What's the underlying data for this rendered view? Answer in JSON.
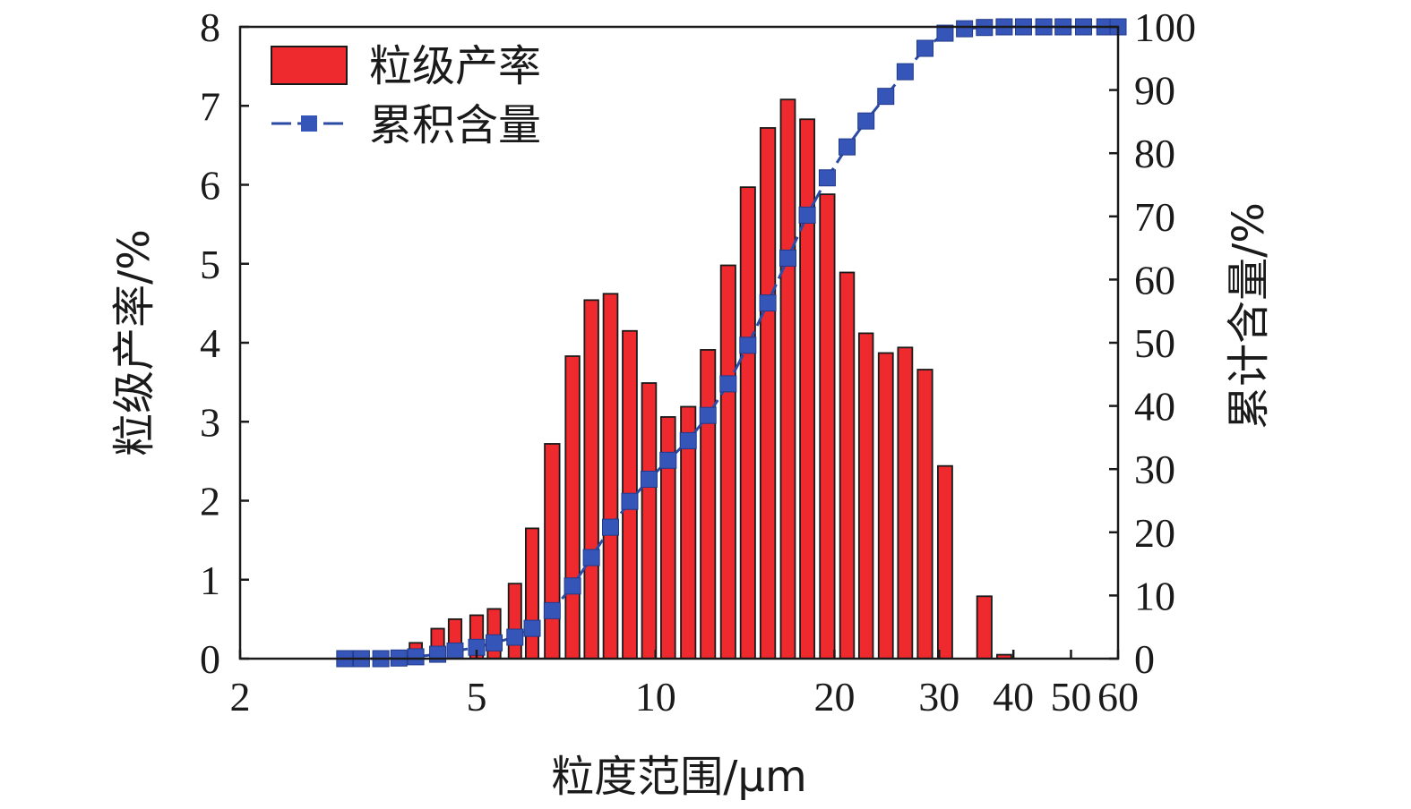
{
  "chart_data": {
    "type": "bar",
    "x_scale": "log",
    "xlabel": "粒度范围/μm",
    "ylabel_left": "粒级产率/%",
    "ylabel_right": "累计含量/%",
    "xlim": [
      2,
      60
    ],
    "ylim_left": [
      0,
      8
    ],
    "ylim_right": [
      0,
      100
    ],
    "x_ticks": [
      2,
      5,
      10,
      20,
      30,
      40,
      50,
      60
    ],
    "y_ticks_left": [
      0,
      1,
      2,
      3,
      4,
      5,
      6,
      7,
      8
    ],
    "y_ticks_right": [
      0,
      10,
      20,
      30,
      40,
      50,
      60,
      70,
      80,
      90,
      100
    ],
    "grid": false,
    "legend_position": "top-left",
    "colors": {
      "bar_fill": "#ee2a2f",
      "bar_edge": "#1a1a1a",
      "line": "#2b4aa6",
      "marker": "#3556b8",
      "axis": "#1a1a1a"
    },
    "series": [
      {
        "name": "粒级产率",
        "type": "bar",
        "axis": "left",
        "x": [
          3.0,
          3.2,
          3.45,
          3.7,
          3.95,
          4.3,
          4.6,
          5.0,
          5.35,
          5.8,
          6.2,
          6.7,
          7.25,
          7.8,
          8.4,
          9.05,
          9.75,
          10.5,
          11.35,
          12.25,
          13.25,
          14.3,
          15.45,
          16.7,
          18.0,
          19.45,
          21.0,
          22.6,
          24.4,
          26.3,
          28.4,
          30.7,
          33.1,
          35.75,
          38.6,
          41.6,
          45.0,
          48.5,
          52.5,
          57.0
        ],
        "values": [
          0,
          0,
          0,
          0.05,
          0.2,
          0.38,
          0.5,
          0.55,
          0.63,
          0.95,
          1.65,
          2.72,
          3.83,
          4.54,
          4.62,
          4.15,
          3.49,
          3.06,
          3.19,
          3.91,
          4.98,
          5.97,
          6.72,
          7.08,
          6.83,
          5.88,
          4.89,
          4.12,
          3.87,
          3.94,
          3.66,
          2.44,
          0,
          0.79,
          0.05,
          0,
          0,
          0,
          0,
          0
        ]
      },
      {
        "name": "累积含量",
        "type": "line",
        "axis": "right",
        "x": [
          3.0,
          3.2,
          3.45,
          3.7,
          3.95,
          4.3,
          4.6,
          5.0,
          5.35,
          5.8,
          6.2,
          6.7,
          7.25,
          7.8,
          8.4,
          9.05,
          9.75,
          10.5,
          11.35,
          12.25,
          13.25,
          14.3,
          15.45,
          16.7,
          18.0,
          19.45,
          21.0,
          22.6,
          24.4,
          26.3,
          28.4,
          30.7,
          33.1,
          35.75,
          38.6,
          41.6,
          45.0,
          48.5,
          52.5,
          57.0,
          60.0
        ],
        "values": [
          0,
          0,
          0,
          0.1,
          0.3,
          0.7,
          1.2,
          1.8,
          2.5,
          3.4,
          4.8,
          7.6,
          11.5,
          16.0,
          20.8,
          24.9,
          28.4,
          31.4,
          34.5,
          38.5,
          43.5,
          49.6,
          56.3,
          63.4,
          70.2,
          76.1,
          81.0,
          85.1,
          89.0,
          92.9,
          96.6,
          99.0,
          99.7,
          99.9,
          100,
          100,
          100,
          100,
          100,
          100,
          100
        ]
      }
    ]
  }
}
